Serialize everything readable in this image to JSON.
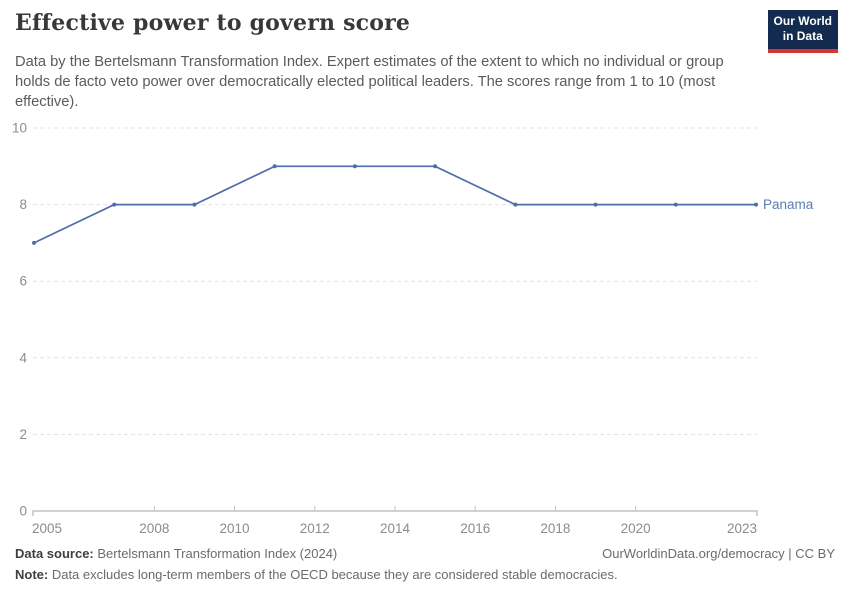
{
  "header": {
    "title": "Effective power to govern score",
    "subtitle": "Data by the Bertelsmann Transformation Index. Expert estimates of the extent to which no individual or group holds de facto veto power over democratically elected political leaders. The scores range from 1 to 10 (most effective).",
    "logo": {
      "line1": "Our World",
      "line2": "in Data",
      "bg_color": "#122b4e",
      "accent_color": "#d8352c"
    }
  },
  "chart_data": {
    "type": "line",
    "title": "Effective power to govern score",
    "x": [
      2005,
      2007,
      2009,
      2011,
      2013,
      2015,
      2017,
      2019,
      2021,
      2023
    ],
    "series": [
      {
        "name": "Panama",
        "values": [
          7,
          8,
          8,
          9,
          9,
          9,
          8,
          8,
          8,
          8
        ],
        "color": "#4e6da9",
        "label_color": "#5d7cb9"
      }
    ],
    "xlabel": "",
    "ylabel": "",
    "xlim": [
      2005,
      2023
    ],
    "ylim": [
      0,
      10
    ],
    "x_ticks": [
      2005,
      2008,
      2010,
      2012,
      2014,
      2016,
      2018,
      2020,
      2023
    ],
    "y_ticks": [
      0,
      2,
      4,
      6,
      8,
      10
    ],
    "grid": "horizontal-dashed",
    "legend_position": "end-of-line-label"
  },
  "footer": {
    "data_source_label": "Data source:",
    "data_source": " Bertelsmann Transformation Index (2024)",
    "attribution": "OurWorldinData.org/democracy | CC BY",
    "note_label": "Note:",
    "note": " Data excludes long-term members of the OECD because they are considered stable democracies."
  }
}
